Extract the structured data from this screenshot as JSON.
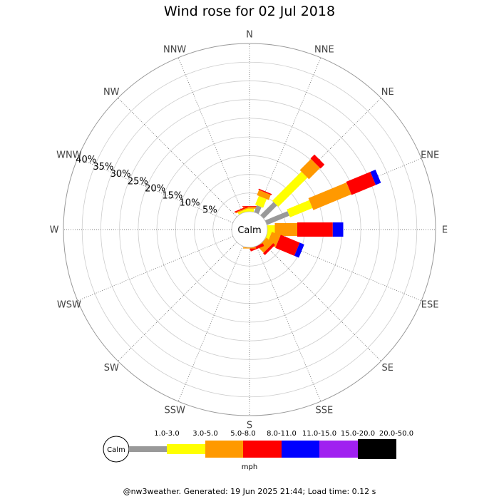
{
  "title": "Wind rose for 02 Jul 2018",
  "footer": "@nw3weather. Generated: 19 Jun 2025 21:44; Load time: 0.12 s",
  "chart_data": {
    "type": "wind-rose",
    "title": "Wind rose for 02 Jul 2018",
    "calm_label": "Calm",
    "directions": [
      "N",
      "NNE",
      "NE",
      "ENE",
      "E",
      "ESE",
      "SE",
      "SSE",
      "S",
      "SSW",
      "SW",
      "WSW",
      "W",
      "WNW",
      "NW",
      "NNW"
    ],
    "radial_ticks": [
      5,
      10,
      15,
      20,
      25,
      30,
      35,
      40
    ],
    "radial_tick_labels": [
      "5%",
      "10%",
      "15%",
      "20%",
      "25%",
      "30%",
      "35%",
      "40%"
    ],
    "rmax_percent": 45,
    "legend_unit": "mph",
    "speed_bins": [
      {
        "label": "1.0-3.0",
        "color": "#999999"
      },
      {
        "label": "3.0-5.0",
        "color": "#ffff00"
      },
      {
        "label": "5.0-8.0",
        "color": "#ff9900"
      },
      {
        "label": "8.0-11.0",
        "color": "#ff0000"
      },
      {
        "label": "11.0-15.0",
        "color": "#0000ff"
      },
      {
        "label": "15.0-20.0",
        "color": "#a020f0"
      },
      {
        "label": "20.0-50.0",
        "color": "#000000"
      }
    ],
    "series": [
      {
        "direction": "N",
        "cumulative": [
          0,
          0,
          0.8,
          1.3,
          1.5
        ]
      },
      {
        "direction": "NNE",
        "cumulative": [
          0,
          2.0,
          4.5,
          6.0,
          6.3
        ]
      },
      {
        "direction": "NE",
        "cumulative": [
          0,
          5.0,
          16.0,
          20.2,
          21.7
        ]
      },
      {
        "direction": "ENE",
        "cumulative": [
          0,
          6.5,
          13.0,
          24.0,
          31.0,
          32.5
        ]
      },
      {
        "direction": "E",
        "cumulative": [
          0,
          0,
          2.0,
          8.0,
          17.5,
          20.3
        ]
      },
      {
        "direction": "ESE",
        "cumulative": [
          0,
          0,
          1.0,
          3.5,
          9.0,
          10.3
        ]
      },
      {
        "direction": "SE",
        "cumulative": [
          0,
          0,
          0,
          2.3,
          3.0
        ]
      },
      {
        "direction": "SSE",
        "cumulative": [
          0,
          0,
          0,
          0,
          0.8
        ]
      },
      {
        "direction": "S",
        "cumulative": [
          0,
          0,
          0,
          0.3
        ]
      },
      {
        "direction": "NNW",
        "cumulative": [
          0,
          0,
          0.6,
          0.9,
          1.2
        ]
      }
    ]
  }
}
